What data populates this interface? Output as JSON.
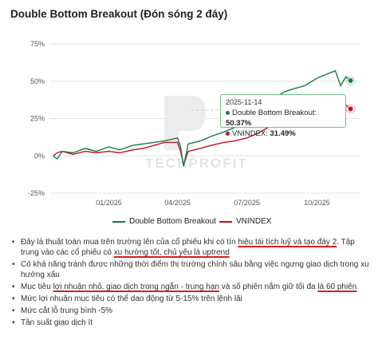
{
  "colors": {
    "strategy": "#1a7a4c",
    "vnindex": "#c1121f",
    "tooltip_border": "#6cc18a",
    "underline": "#d62020"
  },
  "chart_data": {
    "type": "line",
    "title": "Double Bottom Breakout (Đón sóng 2 đáy)",
    "xlabel": "",
    "ylabel": "",
    "y_ticks": [
      "75%",
      "50%",
      "25%",
      "0%",
      "-25%"
    ],
    "x_ticks": [
      "01/2025",
      "04/2025",
      "07/2025",
      "10/2025"
    ],
    "ylim": [
      -25,
      75
    ],
    "grid": "horizontal",
    "legend_position": "bottom",
    "series": [
      {
        "name": "Double Bottom Breakout",
        "color": "#1a7a4c",
        "x": [
          "2024-10-20",
          "2024-10-25",
          "2024-11-01",
          "2024-11-15",
          "2024-12-01",
          "2024-12-15",
          "2025-01-01",
          "2025-01-15",
          "2025-02-01",
          "2025-02-15",
          "2025-03-01",
          "2025-03-15",
          "2025-04-01",
          "2025-04-05",
          "2025-04-09",
          "2025-04-15",
          "2025-05-01",
          "2025-05-15",
          "2025-06-01",
          "2025-06-15",
          "2025-07-01",
          "2025-07-15",
          "2025-08-01",
          "2025-08-10",
          "2025-08-20",
          "2025-09-01",
          "2025-09-15",
          "2025-10-01",
          "2025-10-15",
          "2025-10-25",
          "2025-11-01",
          "2025-11-08",
          "2025-11-14"
        ],
        "values": [
          0,
          -2,
          3,
          2,
          5,
          3,
          6,
          4,
          7,
          8,
          9,
          10,
          12,
          6,
          -7,
          8,
          10,
          13,
          16,
          19,
          23,
          28,
          35,
          40,
          43,
          45,
          47,
          52,
          55,
          57,
          47,
          53,
          50.37
        ]
      },
      {
        "name": "VNINDEX",
        "color": "#c1121f",
        "x": [
          "2024-10-20",
          "2024-10-25",
          "2024-11-01",
          "2024-11-15",
          "2024-12-01",
          "2024-12-15",
          "2025-01-01",
          "2025-01-15",
          "2025-02-01",
          "2025-02-15",
          "2025-03-01",
          "2025-03-15",
          "2025-04-01",
          "2025-04-05",
          "2025-04-09",
          "2025-04-15",
          "2025-05-01",
          "2025-05-15",
          "2025-06-01",
          "2025-06-15",
          "2025-07-01",
          "2025-07-15",
          "2025-08-01",
          "2025-08-10",
          "2025-08-20",
          "2025-09-01",
          "2025-09-15",
          "2025-10-01",
          "2025-10-15",
          "2025-10-25",
          "2025-11-01",
          "2025-11-08",
          "2025-11-14"
        ],
        "values": [
          0,
          2,
          3,
          1,
          3,
          2,
          3,
          2,
          4,
          5,
          7,
          9,
          9,
          3,
          -6,
          3,
          5,
          7,
          9,
          10,
          12,
          15,
          20,
          25,
          27,
          30,
          31,
          33,
          36,
          37,
          32,
          34,
          31.49
        ]
      }
    ],
    "tooltip": {
      "date": "2025-11-14",
      "rows": [
        {
          "label": "Double Bottom Breakout: ",
          "value": "50.37%"
        },
        {
          "label": "VNINDEX: ",
          "value": "31.49%"
        }
      ]
    }
  },
  "watermark": "TECHPROFIT",
  "notes": [
    [
      {
        "t": "Đây là thuật toán mua trên trường lên của cổ phiếu khi có tín "
      },
      {
        "t": "hiệu tái tích luỹ và tạo đáy 2",
        "u": true
      },
      {
        "t": ". Tập trung vào các cổ phiếu có "
      },
      {
        "t": "xu hướng tốt, chủ yếu là uptrend",
        "u": true
      }
    ],
    [
      {
        "t": "Có khả năng tránh được những thời điểm thị trường chính sâu bằng việc ngưng giao dịch trong xu hướng xấu"
      }
    ],
    [
      {
        "t": "Mục tiêu "
      },
      {
        "t": "lợi nhuận nhỏ, giao dịch trong ngắn - trung hạn",
        "u": true
      },
      {
        "t": " và số phiên nắm giữ tối đa "
      },
      {
        "t": "là 60 phiên",
        "u": true
      }
    ],
    [
      {
        "t": "Mức lợi nhuận mục tiêu có thể dao động từ 5-15% trên lệnh lãi"
      }
    ],
    [
      {
        "t": "Mức cắt lỗ trung bình -5%"
      }
    ],
    [
      {
        "t": "Tần suất giao dịch ít"
      }
    ]
  ]
}
